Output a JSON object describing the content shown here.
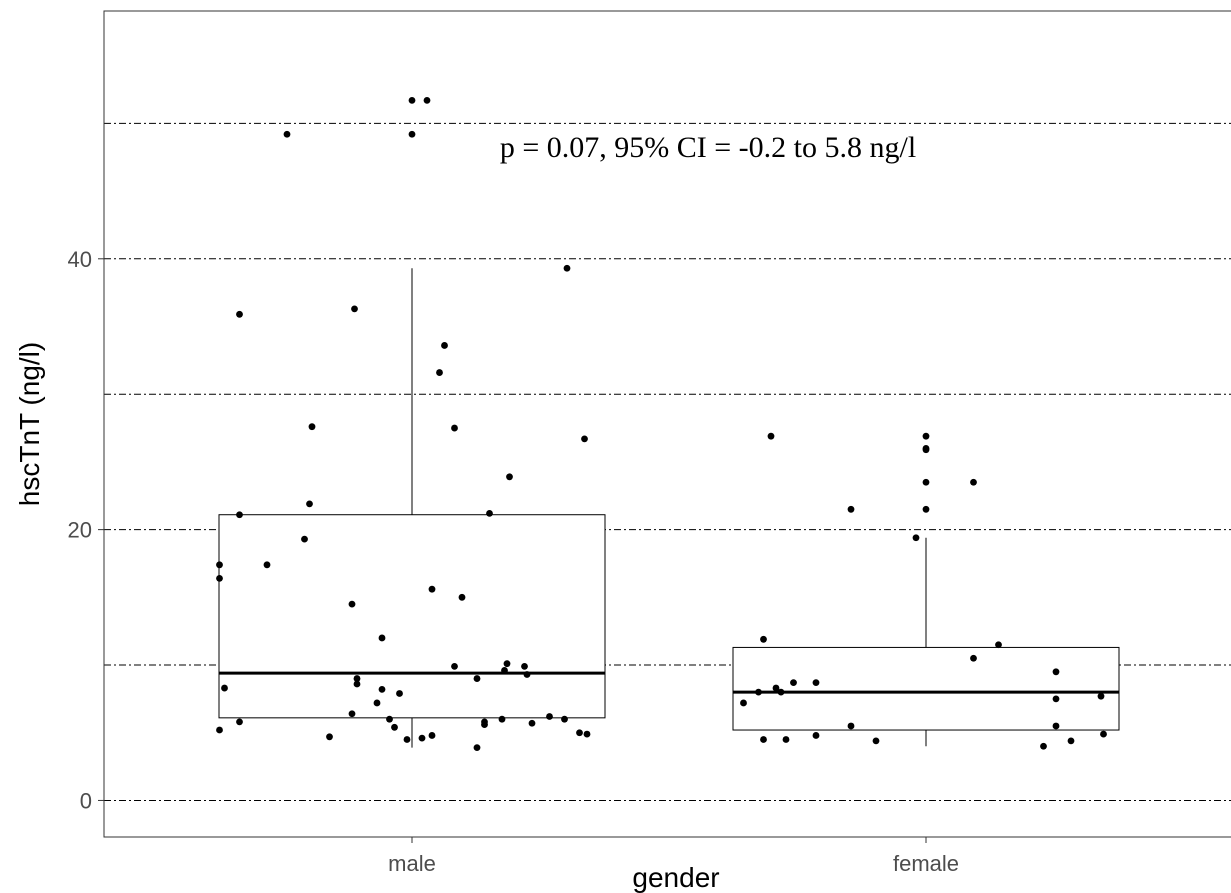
{
  "chart_data": {
    "type": "boxplot",
    "xlabel": "gender",
    "ylabel": "hscTnT (ng/l)",
    "categories": [
      "male",
      "female"
    ],
    "ylim": [
      -2.7,
      58.3
    ],
    "yticks": [
      0,
      20,
      40
    ],
    "gridlines_dashed": [
      0,
      10,
      20,
      30,
      40,
      50
    ],
    "annotation": "p = 0.07, 95% CI = -0.2 to 5.8 ng/l",
    "boxes": [
      {
        "category": "male",
        "q1": 6.1,
        "median": 9.4,
        "q3": 21.1,
        "whisker_low": 3.9,
        "whisker_high": 39.3
      },
      {
        "category": "female",
        "q1": 5.2,
        "median": 8.0,
        "q3": 11.3,
        "whisker_low": 4.0,
        "whisker_high": 19.4
      }
    ],
    "points": [
      {
        "category": "male",
        "jitter": -0.77,
        "value": 5.2
      },
      {
        "category": "male",
        "jitter": -0.77,
        "value": 16.4
      },
      {
        "category": "male",
        "jitter": -0.77,
        "value": 17.4
      },
      {
        "category": "male",
        "jitter": -0.75,
        "value": 8.3
      },
      {
        "category": "male",
        "jitter": -0.69,
        "value": 5.8
      },
      {
        "category": "male",
        "jitter": -0.69,
        "value": 21.1
      },
      {
        "category": "male",
        "jitter": -0.69,
        "value": 35.9
      },
      {
        "category": "male",
        "jitter": -0.58,
        "value": 17.4
      },
      {
        "category": "male",
        "jitter": -0.5,
        "value": 49.2
      },
      {
        "category": "male",
        "jitter": -0.43,
        "value": 19.3
      },
      {
        "category": "male",
        "jitter": -0.41,
        "value": 21.9
      },
      {
        "category": "male",
        "jitter": -0.4,
        "value": 27.6
      },
      {
        "category": "male",
        "jitter": -0.33,
        "value": 4.7
      },
      {
        "category": "male",
        "jitter": -0.24,
        "value": 14.5
      },
      {
        "category": "male",
        "jitter": -0.24,
        "value": 6.4
      },
      {
        "category": "male",
        "jitter": -0.23,
        "value": 36.3
      },
      {
        "category": "male",
        "jitter": -0.22,
        "value": 8.6
      },
      {
        "category": "male",
        "jitter": -0.22,
        "value": 9.0
      },
      {
        "category": "male",
        "jitter": -0.14,
        "value": 7.2
      },
      {
        "category": "male",
        "jitter": -0.12,
        "value": 8.2
      },
      {
        "category": "male",
        "jitter": -0.12,
        "value": 12.0
      },
      {
        "category": "male",
        "jitter": -0.09,
        "value": 6.0
      },
      {
        "category": "male",
        "jitter": -0.07,
        "value": 5.4
      },
      {
        "category": "male",
        "jitter": -0.05,
        "value": 7.9
      },
      {
        "category": "male",
        "jitter": -0.02,
        "value": 4.5
      },
      {
        "category": "male",
        "jitter": 0.0,
        "value": 49.2
      },
      {
        "category": "male",
        "jitter": 0.0,
        "value": 51.7
      },
      {
        "category": "male",
        "jitter": 0.04,
        "value": 4.6
      },
      {
        "category": "male",
        "jitter": 0.06,
        "value": 51.7
      },
      {
        "category": "male",
        "jitter": 0.08,
        "value": 4.8
      },
      {
        "category": "male",
        "jitter": 0.08,
        "value": 15.6
      },
      {
        "category": "male",
        "jitter": 0.11,
        "value": 31.6
      },
      {
        "category": "male",
        "jitter": 0.13,
        "value": 33.6
      },
      {
        "category": "male",
        "jitter": 0.17,
        "value": 27.5
      },
      {
        "category": "male",
        "jitter": 0.17,
        "value": 9.9
      },
      {
        "category": "male",
        "jitter": 0.2,
        "value": 15.0
      },
      {
        "category": "male",
        "jitter": 0.26,
        "value": 9.0
      },
      {
        "category": "male",
        "jitter": 0.26,
        "value": 3.9
      },
      {
        "category": "male",
        "jitter": 0.29,
        "value": 5.6
      },
      {
        "category": "male",
        "jitter": 0.29,
        "value": 5.8
      },
      {
        "category": "male",
        "jitter": 0.31,
        "value": 21.2
      },
      {
        "category": "male",
        "jitter": 0.36,
        "value": 6.0
      },
      {
        "category": "male",
        "jitter": 0.37,
        "value": 9.6
      },
      {
        "category": "male",
        "jitter": 0.38,
        "value": 10.1
      },
      {
        "category": "male",
        "jitter": 0.39,
        "value": 23.9
      },
      {
        "category": "male",
        "jitter": 0.45,
        "value": 9.9
      },
      {
        "category": "male",
        "jitter": 0.46,
        "value": 9.3
      },
      {
        "category": "male",
        "jitter": 0.48,
        "value": 5.7
      },
      {
        "category": "male",
        "jitter": 0.55,
        "value": 6.2
      },
      {
        "category": "male",
        "jitter": 0.61,
        "value": 6.0
      },
      {
        "category": "male",
        "jitter": 0.62,
        "value": 39.3
      },
      {
        "category": "male",
        "jitter": 0.67,
        "value": 5.0
      },
      {
        "category": "male",
        "jitter": 0.69,
        "value": 26.7
      },
      {
        "category": "male",
        "jitter": 0.7,
        "value": 4.9
      },
      {
        "category": "female",
        "jitter": -0.73,
        "value": 7.2
      },
      {
        "category": "female",
        "jitter": -0.67,
        "value": 8.0
      },
      {
        "category": "female",
        "jitter": -0.65,
        "value": 11.9
      },
      {
        "category": "female",
        "jitter": -0.65,
        "value": 4.5
      },
      {
        "category": "female",
        "jitter": -0.62,
        "value": 26.9
      },
      {
        "category": "female",
        "jitter": -0.6,
        "value": 8.3
      },
      {
        "category": "female",
        "jitter": -0.58,
        "value": 8.0
      },
      {
        "category": "female",
        "jitter": -0.56,
        "value": 4.5
      },
      {
        "category": "female",
        "jitter": -0.53,
        "value": 8.7
      },
      {
        "category": "female",
        "jitter": -0.44,
        "value": 8.7
      },
      {
        "category": "female",
        "jitter": -0.44,
        "value": 4.8
      },
      {
        "category": "female",
        "jitter": -0.3,
        "value": 21.5
      },
      {
        "category": "female",
        "jitter": -0.3,
        "value": 5.5
      },
      {
        "category": "female",
        "jitter": -0.2,
        "value": 4.4
      },
      {
        "category": "female",
        "jitter": -0.04,
        "value": 19.4
      },
      {
        "category": "female",
        "jitter": 0.0,
        "value": 21.5
      },
      {
        "category": "female",
        "jitter": 0.0,
        "value": 23.5
      },
      {
        "category": "female",
        "jitter": 0.0,
        "value": 25.9
      },
      {
        "category": "female",
        "jitter": 0.0,
        "value": 26.0
      },
      {
        "category": "female",
        "jitter": 0.0,
        "value": 26.9
      },
      {
        "category": "female",
        "jitter": 0.19,
        "value": 23.5
      },
      {
        "category": "female",
        "jitter": 0.19,
        "value": 10.5
      },
      {
        "category": "female",
        "jitter": 0.29,
        "value": 11.5
      },
      {
        "category": "female",
        "jitter": 0.47,
        "value": 4.0
      },
      {
        "category": "female",
        "jitter": 0.52,
        "value": 9.5
      },
      {
        "category": "female",
        "jitter": 0.52,
        "value": 7.5
      },
      {
        "category": "female",
        "jitter": 0.52,
        "value": 5.5
      },
      {
        "category": "female",
        "jitter": 0.58,
        "value": 4.4
      },
      {
        "category": "female",
        "jitter": 0.7,
        "value": 7.7
      },
      {
        "category": "female",
        "jitter": 0.71,
        "value": 4.9
      }
    ]
  }
}
